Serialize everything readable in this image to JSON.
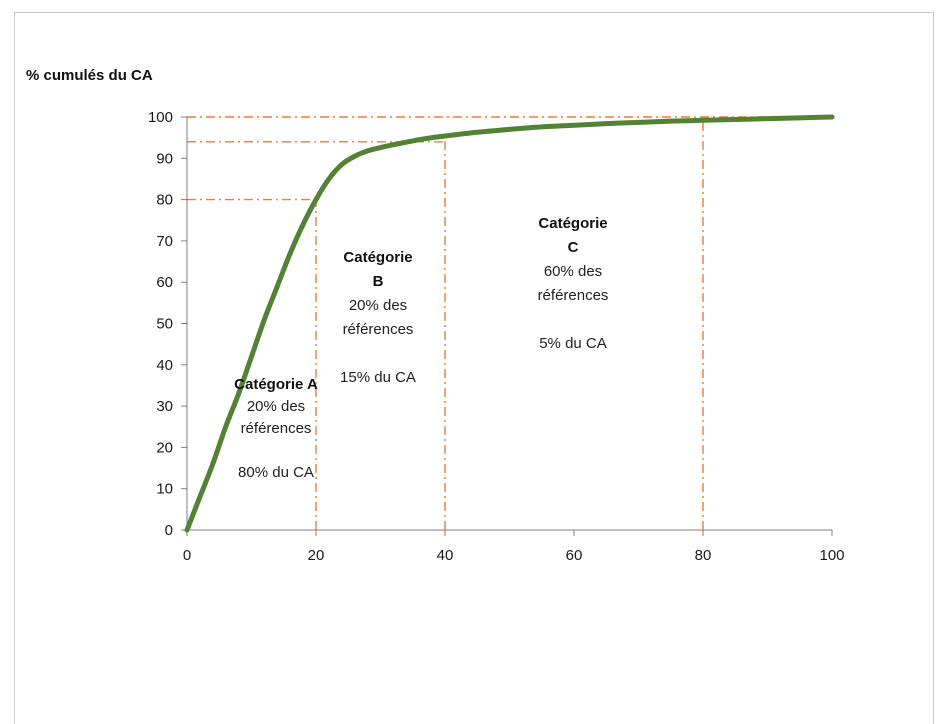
{
  "chart_data": {
    "type": "line",
    "title": "",
    "xlabel": "",
    "ylabel": "% cumulés du CA",
    "xlim": [
      0,
      100
    ],
    "ylim": [
      0,
      100
    ],
    "x_ticks": [
      0,
      20,
      40,
      60,
      80,
      100
    ],
    "y_ticks": [
      0,
      10,
      20,
      30,
      40,
      50,
      60,
      70,
      80,
      90,
      100
    ],
    "grid": false,
    "series": [
      {
        "x": [
          0,
          2,
          4,
          6,
          8,
          10,
          12,
          14,
          16,
          18,
          20,
          22,
          24,
          26,
          28,
          30,
          32,
          34,
          36,
          38,
          40,
          45,
          50,
          55,
          60,
          65,
          70,
          75,
          80,
          85,
          90,
          95,
          100
        ],
        "y": [
          0,
          8,
          16,
          25,
          33,
          42,
          51,
          59,
          67,
          74,
          80,
          85,
          88.5,
          90.5,
          91.8,
          92.6,
          93.3,
          93.9,
          94.5,
          95,
          95.4,
          96.3,
          97,
          97.6,
          98,
          98.4,
          98.7,
          99,
          99.2,
          99.4,
          99.6,
          99.8,
          100
        ]
      }
    ],
    "colors": {
      "curve": "#548235",
      "reference_lines": "#ed7d31",
      "axis": "#7f7f7f"
    },
    "reference_lines": {
      "horizontal": [
        {
          "y": 80,
          "x_to": 20
        },
        {
          "y": 94,
          "x_to": 40
        },
        {
          "y": 100,
          "x_to": 100
        }
      ],
      "vertical": [
        {
          "x": 20,
          "y_to": 80
        },
        {
          "x": 40,
          "y_to": 95
        },
        {
          "x": 80,
          "y_to": 99
        }
      ]
    },
    "annotations": [
      {
        "id": "a",
        "lines": [
          {
            "text": "Catégorie A",
            "bold": true
          },
          {
            "text": "20% des",
            "bold": false
          },
          {
            "text": "références",
            "bold": false
          },
          {
            "text": "",
            "bold": false
          },
          {
            "text": "80% du CA",
            "bold": false
          }
        ]
      },
      {
        "id": "b",
        "lines": [
          {
            "text": "Catégorie",
            "bold": true
          },
          {
            "text": "B",
            "bold": true
          },
          {
            "text": "20% des",
            "bold": false
          },
          {
            "text": "références",
            "bold": false
          },
          {
            "text": "",
            "bold": false
          },
          {
            "text": "15% du CA",
            "bold": false
          }
        ]
      },
      {
        "id": "c",
        "lines": [
          {
            "text": "Catégorie",
            "bold": true
          },
          {
            "text": "C",
            "bold": true
          },
          {
            "text": "60% des",
            "bold": false
          },
          {
            "text": "références",
            "bold": false
          },
          {
            "text": "",
            "bold": false
          },
          {
            "text": "5% du CA",
            "bold": false
          }
        ]
      }
    ]
  }
}
